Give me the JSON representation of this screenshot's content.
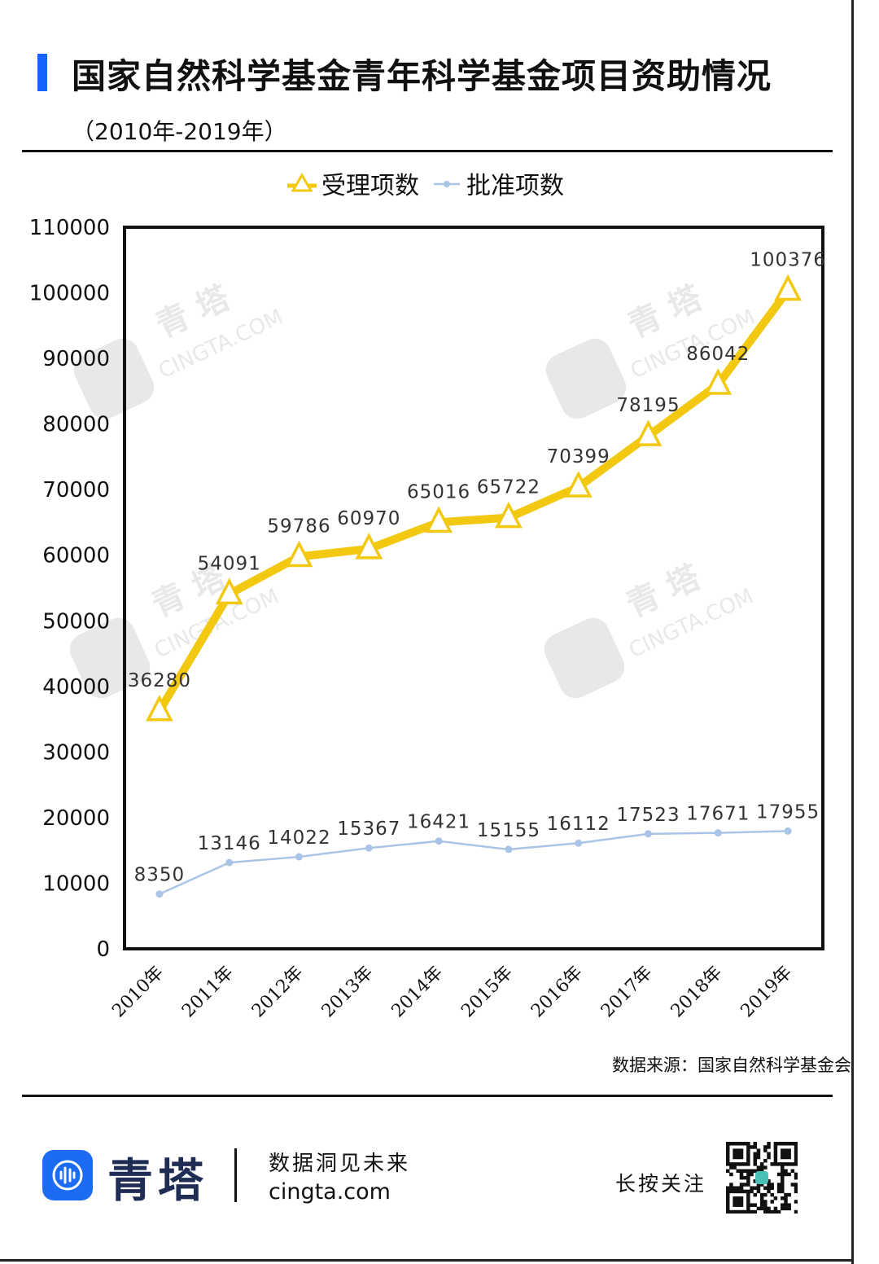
{
  "header": {
    "title": "国家自然科学基金青年科学基金项目资助情况",
    "subtitle": "（2010年-2019年）"
  },
  "colors": {
    "accent_bar": "#1664ff",
    "series_applied": "#f2c811",
    "series_approved": "#a9c4e6"
  },
  "watermark": {
    "brand": "青 塔",
    "domain": "CINGTA.COM"
  },
  "chart_data": {
    "type": "line",
    "categories": [
      "2010年",
      "2011年",
      "2012年",
      "2013年",
      "2014年",
      "2015年",
      "2016年",
      "2017年",
      "2018年",
      "2019年"
    ],
    "series": [
      {
        "name": "受理项数",
        "values": [
          36280,
          54091,
          59786,
          60970,
          65016,
          65722,
          70399,
          78195,
          86042,
          100376
        ],
        "marker": "triangle"
      },
      {
        "name": "批准项数",
        "values": [
          8350,
          13146,
          14022,
          15367,
          16421,
          15155,
          16112,
          17523,
          17671,
          17955
        ],
        "marker": "dot"
      }
    ],
    "ylim": [
      0,
      110000
    ],
    "yticks": [
      0,
      10000,
      20000,
      30000,
      40000,
      50000,
      60000,
      70000,
      80000,
      90000,
      100000,
      110000
    ],
    "xlabel": "",
    "ylabel": "",
    "grid": false,
    "legend_position": "top-center",
    "data_labels": true
  },
  "source": "数据来源：国家自然科学基金会",
  "footer": {
    "brand": "青塔",
    "slogan": "数据洞见未来",
    "url": "cingta.com",
    "follow": "长按关注"
  }
}
